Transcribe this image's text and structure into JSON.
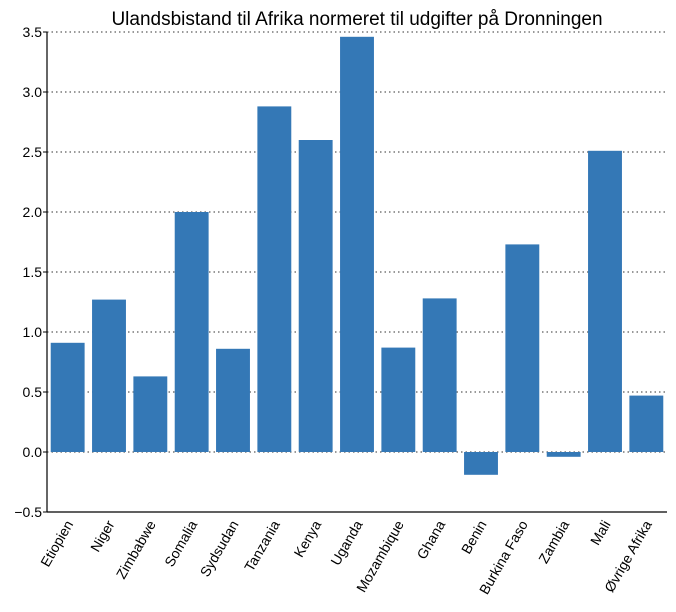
{
  "chart_data": {
    "type": "bar",
    "title": "Ulandsbistand til Afrika normeret til udgifter på Dronningen",
    "xlabel": "",
    "ylabel": "",
    "categories": [
      "Etiopien",
      "Niger",
      "Zimbabwe",
      "Somalia",
      "Sydsudan",
      "Tanzania",
      "Kenya",
      "Uganda",
      "Mozambique",
      "Ghana",
      "Benin",
      "Burkina Faso",
      "Zambia",
      "Mali",
      "Øvrige Afrika"
    ],
    "values": [
      0.91,
      1.27,
      0.63,
      2.0,
      0.86,
      2.88,
      2.6,
      3.46,
      0.87,
      1.28,
      -0.19,
      1.73,
      -0.04,
      2.51,
      0.47
    ],
    "ylim": [
      -0.5,
      3.5
    ],
    "yticks": [
      "−0.5",
      "0.0",
      "0.5",
      "1.0",
      "1.5",
      "2.0",
      "2.5",
      "3.0",
      "3.5"
    ],
    "grid": "horizontal-dotted",
    "legend": "none",
    "bar_color": "#3478b6"
  }
}
